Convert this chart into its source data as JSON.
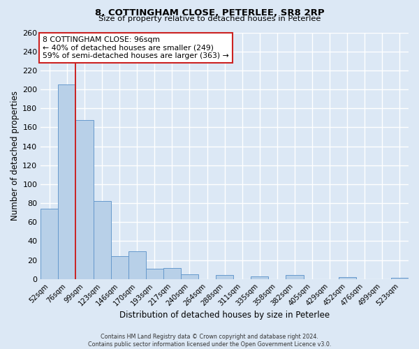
{
  "title": "8, COTTINGHAM CLOSE, PETERLEE, SR8 2RP",
  "subtitle": "Size of property relative to detached houses in Peterlee",
  "xlabel": "Distribution of detached houses by size in Peterlee",
  "ylabel": "Number of detached properties",
  "footer_line1": "Contains HM Land Registry data © Crown copyright and database right 2024.",
  "footer_line2": "Contains public sector information licensed under the Open Government Licence v3.0.",
  "bar_labels": [
    "52sqm",
    "76sqm",
    "99sqm",
    "123sqm",
    "146sqm",
    "170sqm",
    "193sqm",
    "217sqm",
    "240sqm",
    "264sqm",
    "288sqm",
    "311sqm",
    "335sqm",
    "358sqm",
    "382sqm",
    "405sqm",
    "429sqm",
    "452sqm",
    "476sqm",
    "499sqm",
    "523sqm"
  ],
  "bar_values": [
    74,
    205,
    168,
    82,
    24,
    29,
    11,
    12,
    5,
    0,
    4,
    0,
    3,
    0,
    4,
    0,
    0,
    2,
    0,
    0,
    1
  ],
  "bar_color": "#b8d0e8",
  "bar_edge_color": "#6699cc",
  "background_color": "#dce8f5",
  "grid_color": "#ffffff",
  "vline_x_index": 2,
  "vline_color": "#cc2222",
  "annotation_text": "8 COTTINGHAM CLOSE: 96sqm\n← 40% of detached houses are smaller (249)\n59% of semi-detached houses are larger (363) →",
  "annotation_box_color": "#ffffff",
  "annotation_box_edge": "#cc2222",
  "ylim": [
    0,
    260
  ],
  "yticks": [
    0,
    20,
    40,
    60,
    80,
    100,
    120,
    140,
    160,
    180,
    200,
    220,
    240,
    260
  ]
}
